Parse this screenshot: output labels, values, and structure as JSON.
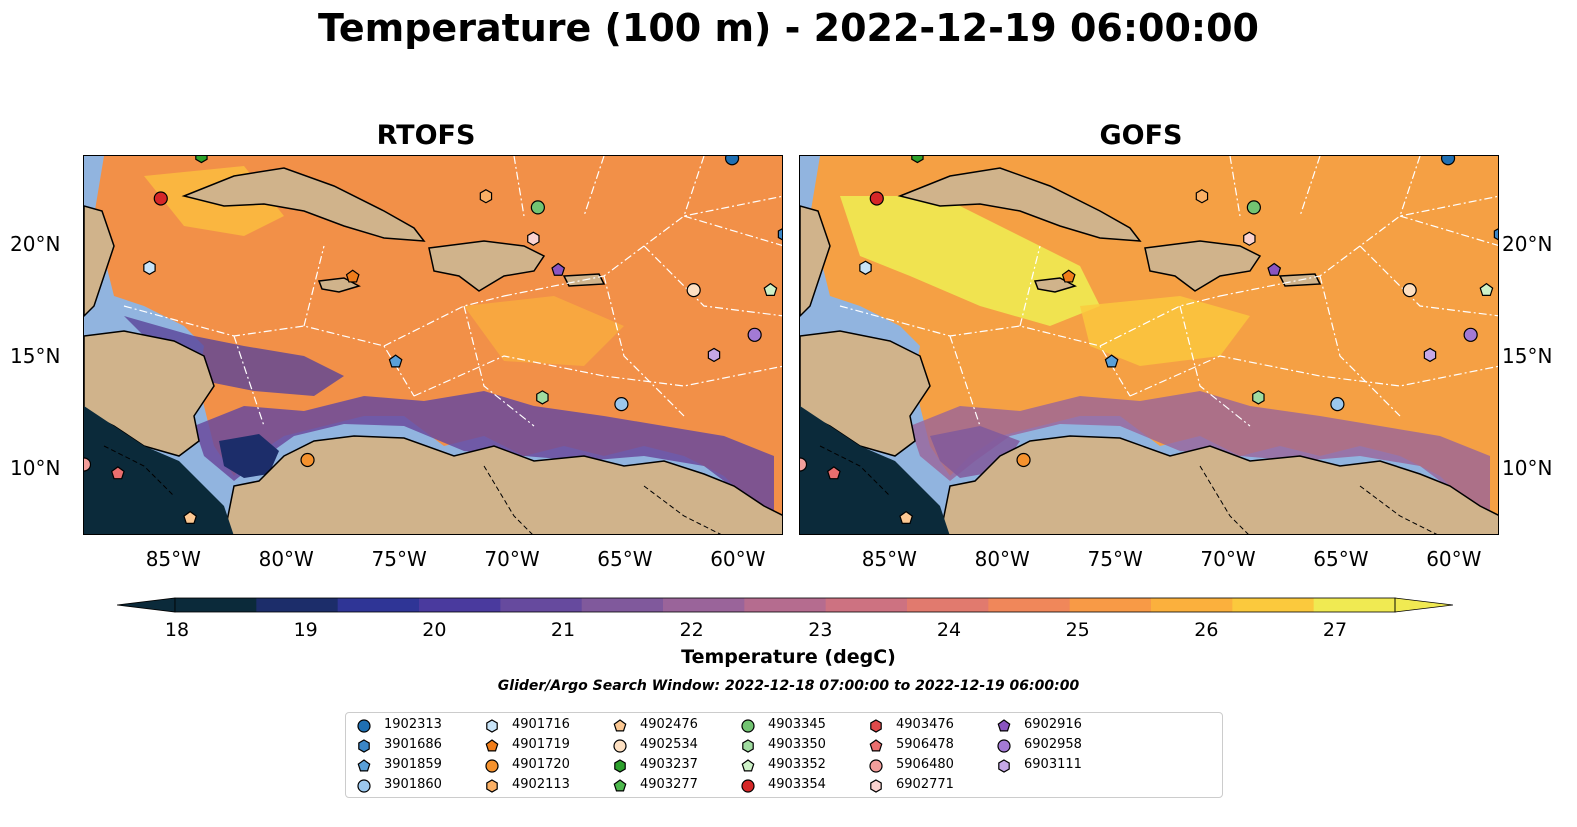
{
  "title": "Temperature (100 m) - 2022-12-19 06:00:00",
  "panels": [
    {
      "title": "RTOFS"
    },
    {
      "title": "GOFS"
    }
  ],
  "axes": {
    "lon_ticks": [
      "85°W",
      "80°W",
      "75°W",
      "70°W",
      "65°W",
      "60°W"
    ],
    "lat_ticks": [
      "20°N",
      "15°N",
      "10°N"
    ],
    "lon_range": [
      -89,
      -58
    ],
    "lat_range": [
      7,
      24
    ]
  },
  "colorbar": {
    "label": "Temperature (degC)",
    "ticks": [
      "18",
      "19",
      "20",
      "21",
      "22",
      "23",
      "24",
      "25",
      "26",
      "27"
    ],
    "range": [
      18,
      27
    ],
    "extend": "both",
    "colormap": [
      "#0b2a3a",
      "#1c2d6a",
      "#2f3596",
      "#4a3a9e",
      "#664a9e",
      "#80599c",
      "#9a649a",
      "#b56c8f",
      "#cd7281",
      "#e17a6e",
      "#f0875a",
      "#f89a46",
      "#fbb03d",
      "#fbc93d",
      "#f0ea52"
    ]
  },
  "search_window": "Glider/Argo Search Window: 2022-12-18 07:00:00 to 2022-12-19 06:00:00",
  "legend": [
    {
      "id": "1902313",
      "marker": "circle",
      "color": "#1f6fb2"
    },
    {
      "id": "3901686",
      "marker": "hexagon",
      "color": "#3b86c6"
    },
    {
      "id": "3901859",
      "marker": "pentagon",
      "color": "#5aa0d8"
    },
    {
      "id": "3901860",
      "marker": "circle",
      "color": "#9cc8ee"
    },
    {
      "id": "4901716",
      "marker": "hexagon",
      "color": "#c8e4f8"
    },
    {
      "id": "4901719",
      "marker": "pentagon",
      "color": "#f07d1a"
    },
    {
      "id": "4901720",
      "marker": "circle",
      "color": "#f5922e"
    },
    {
      "id": "4902113",
      "marker": "hexagon",
      "color": "#fbb065"
    },
    {
      "id": "4902476",
      "marker": "pentagon",
      "color": "#fcc893"
    },
    {
      "id": "4902534",
      "marker": "circle",
      "color": "#fde0c2"
    },
    {
      "id": "4903237",
      "marker": "hexagon",
      "color": "#2ca02c"
    },
    {
      "id": "4903277",
      "marker": "pentagon",
      "color": "#4db84d"
    },
    {
      "id": "4903345",
      "marker": "circle",
      "color": "#72c472"
    },
    {
      "id": "4903350",
      "marker": "hexagon",
      "color": "#a0dca0"
    },
    {
      "id": "4903352",
      "marker": "pentagon",
      "color": "#cef2c8"
    },
    {
      "id": "4903354",
      "marker": "circle",
      "color": "#d62728"
    },
    {
      "id": "4903476",
      "marker": "hexagon",
      "color": "#e04a4b"
    },
    {
      "id": "5906478",
      "marker": "pentagon",
      "color": "#ea6e6e"
    },
    {
      "id": "5906480",
      "marker": "circle",
      "color": "#f29e9b"
    },
    {
      "id": "6902771",
      "marker": "hexagon",
      "color": "#fbd3d0"
    },
    {
      "id": "6902916",
      "marker": "pentagon",
      "color": "#8a55c0"
    },
    {
      "id": "6902958",
      "marker": "circle",
      "color": "#a37ad4"
    },
    {
      "id": "6903111",
      "marker": "hexagon",
      "color": "#c5a8e6"
    }
  ],
  "floats": [
    {
      "id": "1902313",
      "lon": -60.3,
      "lat": 23.9
    },
    {
      "id": "3901686",
      "lon": -58.0,
      "lat": 20.5
    },
    {
      "id": "3901859",
      "lon": -75.2,
      "lat": 14.8
    },
    {
      "id": "3901860",
      "lon": -65.2,
      "lat": 12.9
    },
    {
      "id": "4901716",
      "lon": -86.1,
      "lat": 19.0
    },
    {
      "id": "4901719",
      "lon": -77.1,
      "lat": 18.6
    },
    {
      "id": "4901720",
      "lon": -79.1,
      "lat": 10.4
    },
    {
      "id": "4902113",
      "lon": -71.2,
      "lat": 22.2
    },
    {
      "id": "4902476",
      "lon": -84.3,
      "lat": 7.8
    },
    {
      "id": "4902534",
      "lon": -62.0,
      "lat": 18.0
    },
    {
      "id": "4903237",
      "lon": -83.8,
      "lat": 24.0
    },
    {
      "id": "4903345",
      "lon": -68.9,
      "lat": 21.7
    },
    {
      "id": "4903350",
      "lon": -68.7,
      "lat": 13.2
    },
    {
      "id": "4903352",
      "lon": -58.6,
      "lat": 18.0
    },
    {
      "id": "4903354",
      "lon": -85.6,
      "lat": 22.1
    },
    {
      "id": "5906478",
      "lon": -87.5,
      "lat": 9.8
    },
    {
      "id": "5906480",
      "lon": -89.0,
      "lat": 10.2
    },
    {
      "id": "6902771",
      "lon": -69.1,
      "lat": 20.3
    },
    {
      "id": "6902916",
      "lon": -68.0,
      "lat": 18.9
    },
    {
      "id": "6902958",
      "lon": -59.3,
      "lat": 16.0
    },
    {
      "id": "6903111",
      "lon": -61.1,
      "lat": 15.1
    }
  ]
}
